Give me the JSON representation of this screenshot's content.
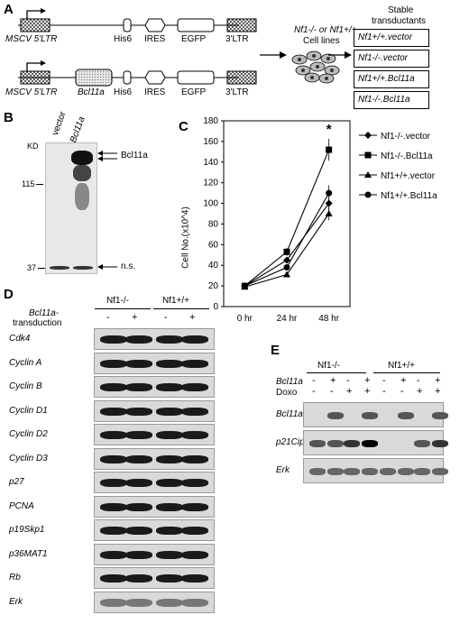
{
  "panels": {
    "A": "A",
    "B": "B",
    "C": "C",
    "D": "D",
    "E": "E"
  },
  "panelA": {
    "row1": {
      "ltr5": "MSCV 5'LTR",
      "his": "His6",
      "ires": "IRES",
      "egfp": "EGFP",
      "ltr3": "3'LTR"
    },
    "row2": {
      "ltr5": "MSCV 5'LTR",
      "insert": "Bcl11a",
      "his": "His6",
      "ires": "IRES",
      "egfp": "EGFP",
      "ltr3": "3'LTR"
    },
    "cells_line1": "Nf1-/- or Nf1+/+",
    "cells_line2": "Cell lines",
    "stable_title1": "Stable",
    "stable_title2": "transductants",
    "transductants": [
      "Nf1+/+.vector",
      "Nf1-/-.vector",
      "Nf1+/+.Bcl11a",
      "Nf1-/-.Bcl11a"
    ]
  },
  "panelB": {
    "kd": "KD",
    "lanes": [
      "vector",
      "Bcl11a"
    ],
    "markers": [
      "115",
      "37"
    ],
    "band_labels": {
      "top": "Bcl11a",
      "bottom": "n.s."
    }
  },
  "chart_data": {
    "type": "line",
    "x": [
      "0 hr",
      "24 hr",
      "48 hr"
    ],
    "ylabel": "Cell No.(x10^4)",
    "ylim": [
      0,
      180
    ],
    "yticks": [
      0,
      20,
      40,
      60,
      80,
      100,
      120,
      140,
      160,
      180
    ],
    "annotation": "*",
    "series": [
      {
        "name": "Nf1-/-.vector",
        "marker": "diamond",
        "values": [
          20,
          45,
          100
        ]
      },
      {
        "name": "Nf1-/-.Bcl11a",
        "marker": "square",
        "values": [
          20,
          53,
          152
        ]
      },
      {
        "name": "Nf1+/+.vector",
        "marker": "triangle",
        "values": [
          19,
          31,
          90
        ]
      },
      {
        "name": "Nf1+/+.Bcl11a",
        "marker": "circle",
        "values": [
          20,
          38,
          110
        ]
      }
    ]
  },
  "panelD": {
    "groups": [
      "Nf1-/-",
      "Nf1+/+"
    ],
    "transduction_label1": "Bcl11a-",
    "transduction_label2": "transduction",
    "signs": [
      "-",
      "+",
      "-",
      "+"
    ],
    "rows": [
      "Cdk4",
      "Cyclin A",
      "Cyclin B",
      "Cyclin D1",
      "Cyclin D2",
      "Cyclin D3",
      "p27",
      "PCNA",
      "p19Skp1",
      "p36MAT1",
      "Rb",
      "Erk"
    ]
  },
  "panelE": {
    "groups": [
      "Nf1-/-",
      "Nf1+/+"
    ],
    "bcl_label": "Bcl11a",
    "doxo_label": "Doxo",
    "bcl_signs": [
      "-",
      "+",
      "-",
      "+",
      "-",
      "+",
      "-",
      "+"
    ],
    "doxo_signs": [
      "-",
      "-",
      "+",
      "+",
      "-",
      "-",
      "+",
      "+"
    ],
    "rows": [
      "Bcl11a",
      "p21Cip1",
      "Erk"
    ]
  }
}
